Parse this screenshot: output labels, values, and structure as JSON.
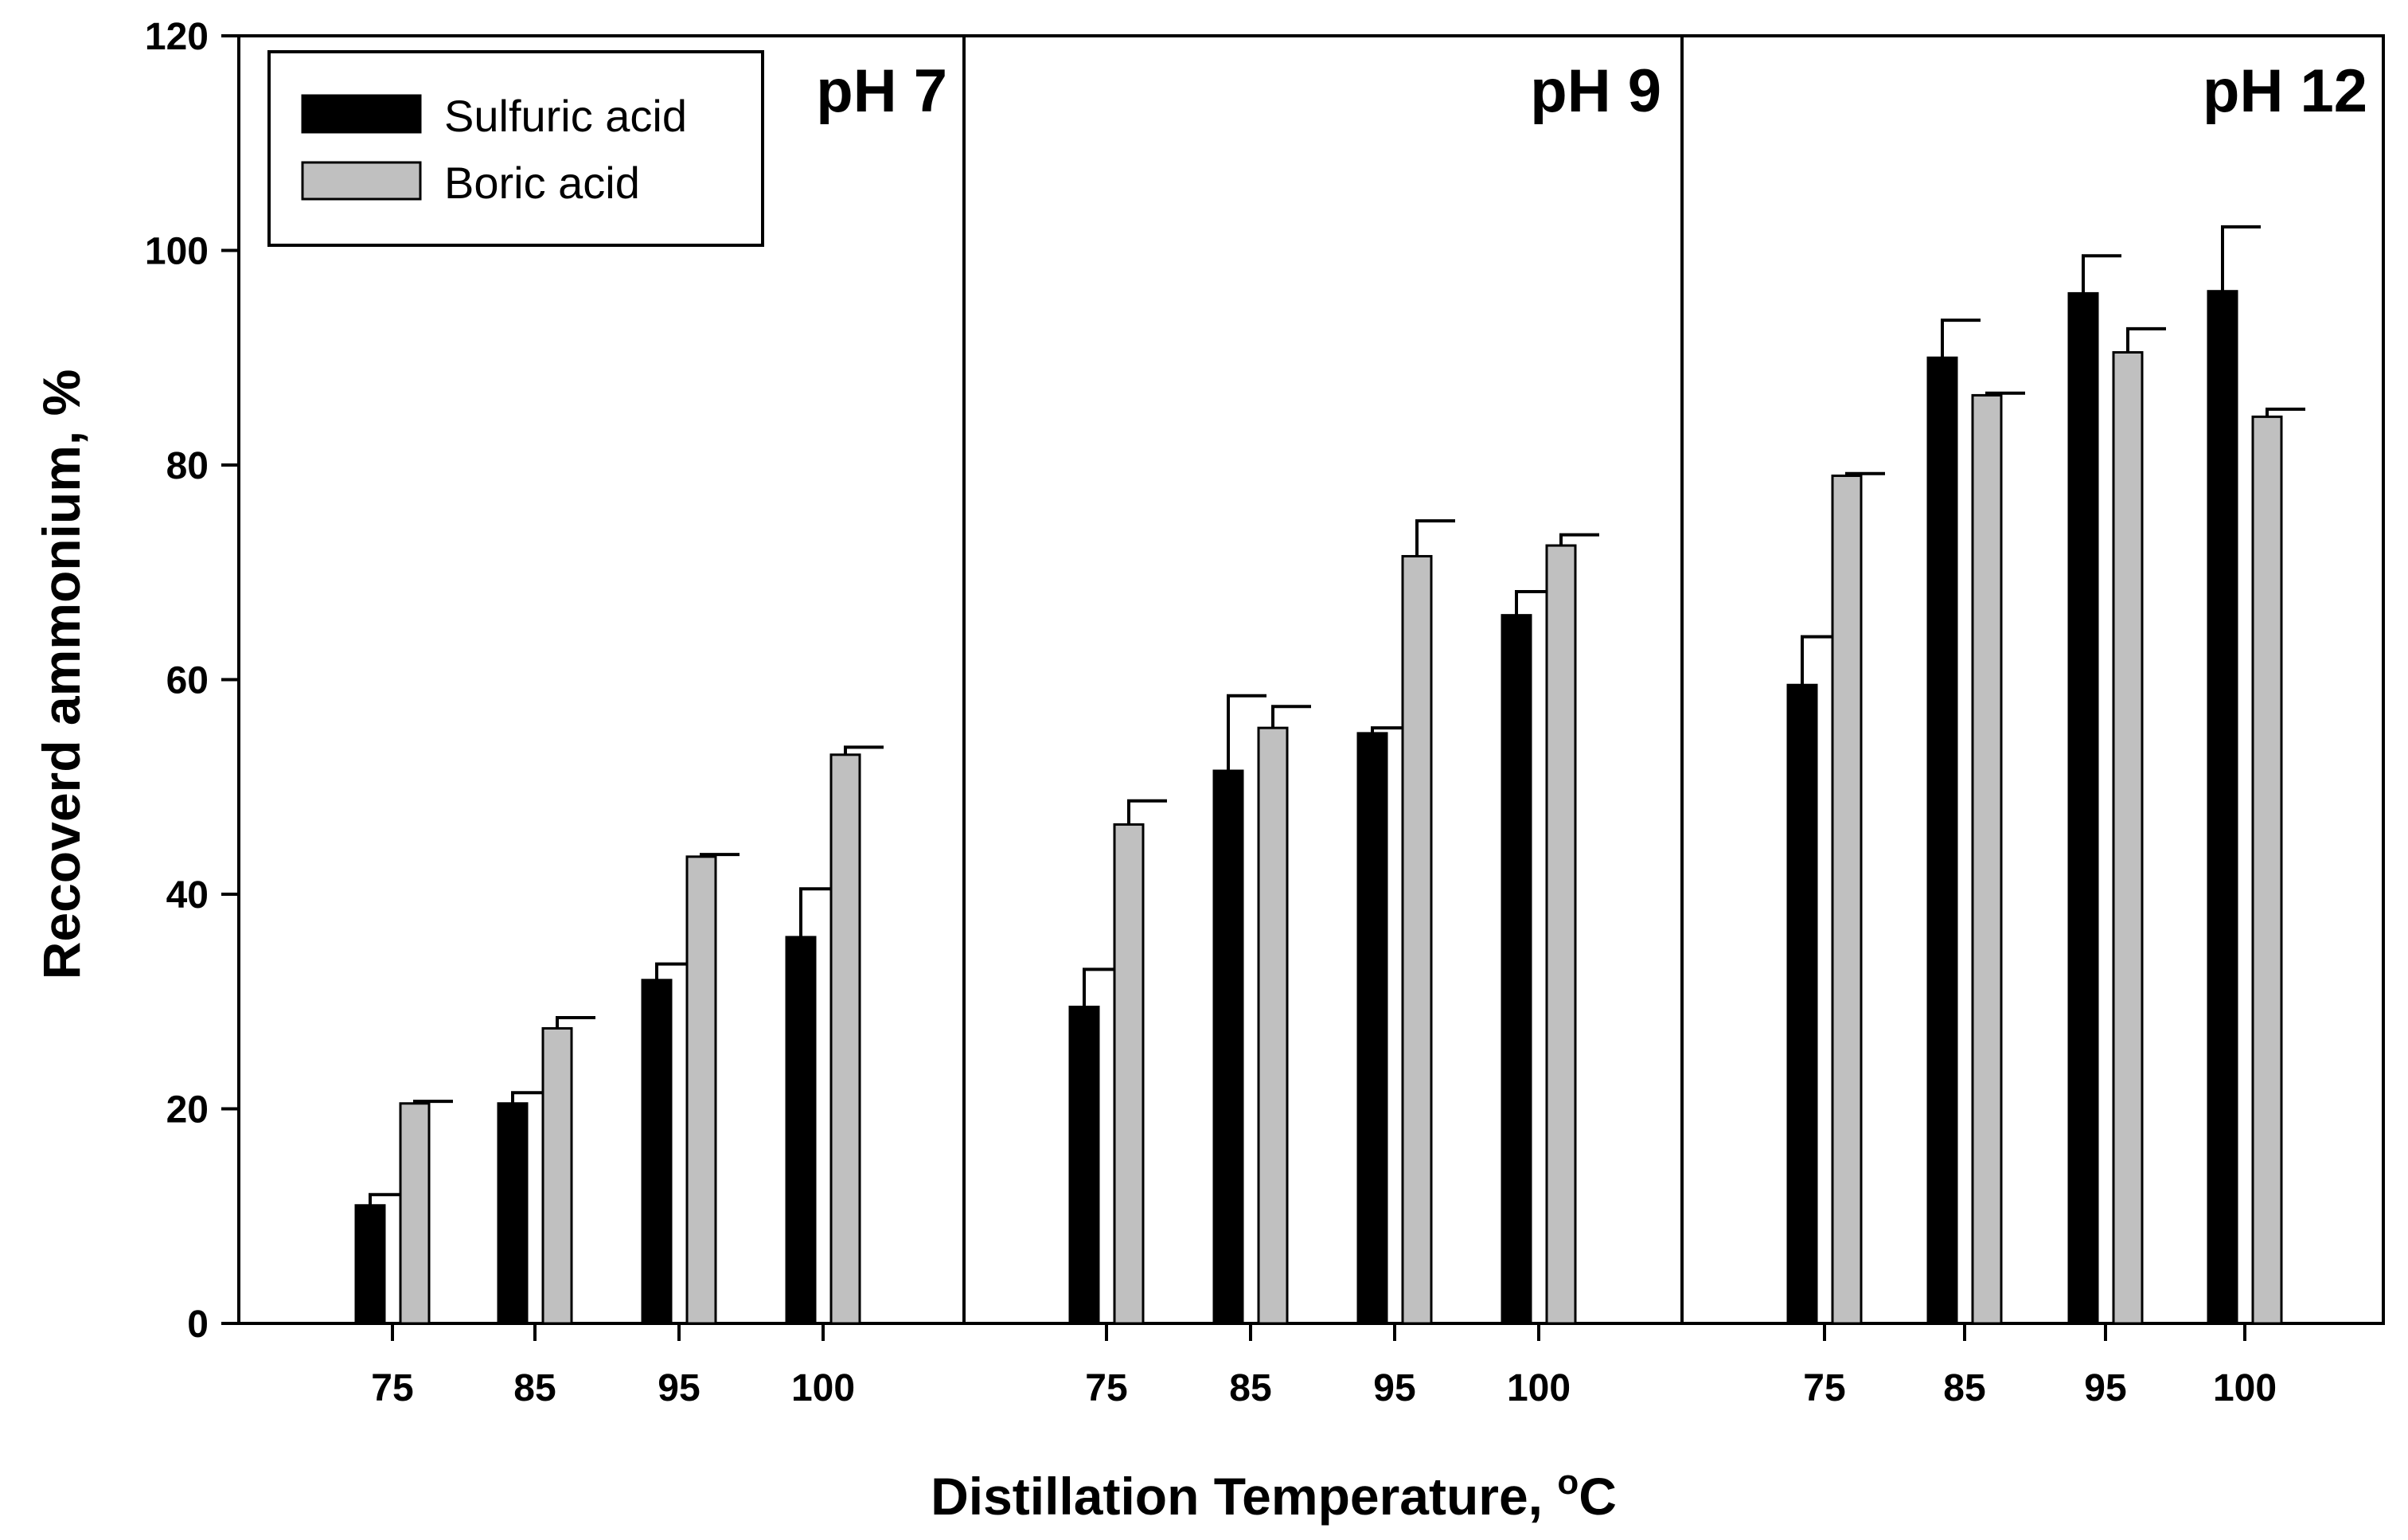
{
  "chart_data": {
    "type": "bar",
    "ylabel": "Recoverd ammonium, %",
    "xlabel_main": "Distillation Temperature, ",
    "xlabel_sup": "o",
    "xlabel_unit": "C",
    "ylim": [
      0,
      120
    ],
    "yticks": [
      0,
      20,
      40,
      60,
      80,
      100,
      120
    ],
    "legend_position": "top-left",
    "series_colors": [
      "#000000",
      "#c0c0c0"
    ],
    "series": [
      {
        "name": "Sulfuric acid",
        "color": "#000000"
      },
      {
        "name": "Boric acid",
        "color": "#c0c0c0"
      }
    ],
    "panels": [
      {
        "label": "pH 7",
        "categories": [
          "75",
          "85",
          "95",
          "100"
        ],
        "values": [
          [
            11,
            20.5,
            32,
            36
          ],
          [
            20.5,
            27.5,
            43.5,
            53
          ]
        ],
        "errors": [
          [
            1,
            1,
            1.5,
            4.5
          ],
          [
            0.2,
            1,
            0.2,
            0.7
          ]
        ]
      },
      {
        "label": "pH 9",
        "categories": [
          "75",
          "85",
          "95",
          "100"
        ],
        "values": [
          [
            29.5,
            51.5,
            55,
            66
          ],
          [
            46.5,
            55.5,
            71.5,
            72.5
          ]
        ],
        "errors": [
          [
            3.5,
            7,
            0.5,
            2.2
          ],
          [
            2.2,
            2,
            3.3,
            1
          ]
        ]
      },
      {
        "label": "pH 12",
        "categories": [
          "75",
          "85",
          "95",
          "100"
        ],
        "values": [
          [
            59.5,
            90,
            96,
            96.2
          ],
          [
            79,
            86.5,
            90.5,
            84.5
          ]
        ],
        "errors": [
          [
            4.5,
            3.5,
            3.5,
            6
          ],
          [
            0.2,
            0.2,
            2.2,
            0.7
          ]
        ]
      }
    ]
  }
}
